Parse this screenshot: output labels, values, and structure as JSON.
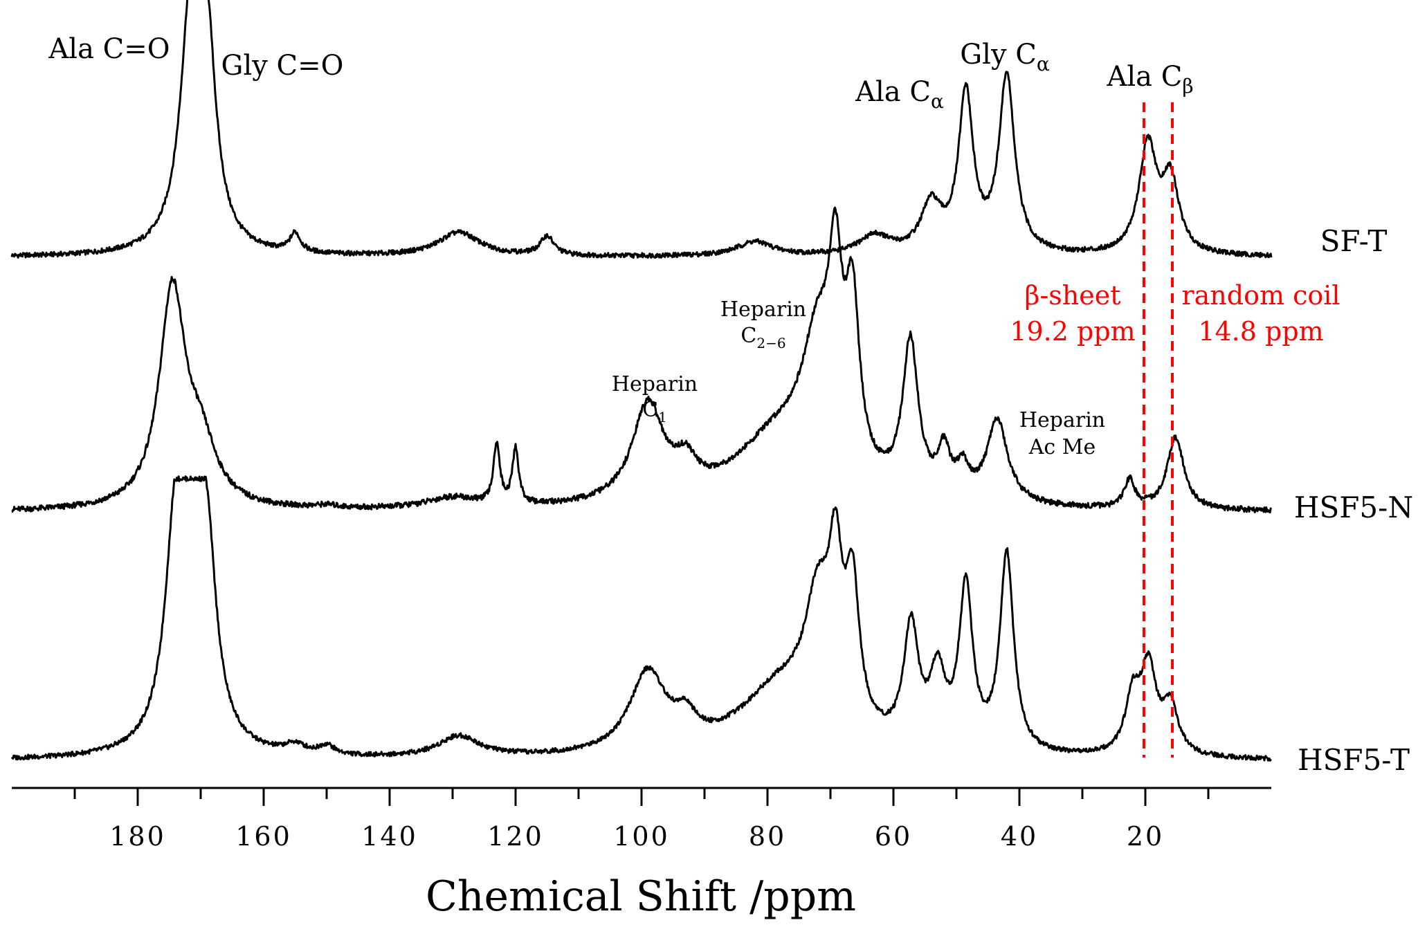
{
  "chart_data": {
    "type": "line",
    "xlabel": "Chemical Shift /ppm",
    "ylabel": "",
    "xlim": [
      200,
      0
    ],
    "x_reversed": true,
    "x_ticks": [
      180,
      160,
      140,
      120,
      100,
      80,
      60,
      40,
      20
    ],
    "x_minor_tick_step": 10,
    "series": [
      {
        "name": "SF-T",
        "peaks": [
          {
            "x": 184,
            "y": 0.0,
            "w": 2
          },
          {
            "x": 171.5,
            "y": 1.0,
            "w": 2.0
          },
          {
            "x": 169.0,
            "y": 0.76,
            "w": 1.7
          },
          {
            "x": 155,
            "y": 0.08,
            "w": 1.0
          },
          {
            "x": 129,
            "y": 0.1,
            "w": 4.0
          },
          {
            "x": 115,
            "y": 0.08,
            "w": 1.3
          },
          {
            "x": 82,
            "y": 0.06,
            "w": 3.5
          },
          {
            "x": 63,
            "y": 0.08,
            "w": 3.0
          },
          {
            "x": 54,
            "y": 0.2,
            "w": 2.0
          },
          {
            "x": 48.5,
            "y": 0.66,
            "w": 1.4
          },
          {
            "x": 42.0,
            "y": 0.74,
            "w": 1.5
          },
          {
            "x": 19.6,
            "y": 0.45,
            "w": 1.7
          },
          {
            "x": 16.0,
            "y": 0.3,
            "w": 1.6
          }
        ]
      },
      {
        "name": "HSF5-N",
        "peaks": [
          {
            "x": 174.5,
            "y": 0.78,
            "w": 2.5
          },
          {
            "x": 170,
            "y": 0.2,
            "w": 3.0
          },
          {
            "x": 150,
            "y": 0.01,
            "w": 2.0
          },
          {
            "x": 130,
            "y": 0.04,
            "w": 5.0
          },
          {
            "x": 123,
            "y": 0.22,
            "w": 0.6
          },
          {
            "x": 120,
            "y": 0.2,
            "w": 0.6
          },
          {
            "x": 99,
            "y": 0.35,
            "w": 3.0
          },
          {
            "x": 93,
            "y": 0.1,
            "w": 2.0
          },
          {
            "x": 78,
            "y": 0.25,
            "w": 9.0
          },
          {
            "x": 72,
            "y": 0.45,
            "w": 3.0
          },
          {
            "x": 69.2,
            "y": 0.6,
            "w": 1.3
          },
          {
            "x": 66.5,
            "y": 0.58,
            "w": 1.3
          },
          {
            "x": 57.3,
            "y": 0.55,
            "w": 1.5
          },
          {
            "x": 52,
            "y": 0.16,
            "w": 1.2
          },
          {
            "x": 49,
            "y": 0.1,
            "w": 1.2
          },
          {
            "x": 43.5,
            "y": 0.3,
            "w": 2.0
          },
          {
            "x": 22.5,
            "y": 0.1,
            "w": 1.0
          },
          {
            "x": 15.2,
            "y": 0.26,
            "w": 1.6
          }
        ]
      },
      {
        "name": "HSF5-T",
        "peaks": [
          {
            "x": 174,
            "y": 0.8,
            "w": 2.0
          },
          {
            "x": 171.5,
            "y": 0.9,
            "w": 2.0
          },
          {
            "x": 169,
            "y": 0.7,
            "w": 1.8
          },
          {
            "x": 155,
            "y": 0.04,
            "w": 2.0
          },
          {
            "x": 150,
            "y": 0.04,
            "w": 1.5
          },
          {
            "x": 129,
            "y": 0.09,
            "w": 4.0
          },
          {
            "x": 99,
            "y": 0.34,
            "w": 3.5
          },
          {
            "x": 93,
            "y": 0.1,
            "w": 2.0
          },
          {
            "x": 78,
            "y": 0.28,
            "w": 8.0
          },
          {
            "x": 72,
            "y": 0.5,
            "w": 2.5
          },
          {
            "x": 69.2,
            "y": 0.6,
            "w": 1.3
          },
          {
            "x": 66.5,
            "y": 0.58,
            "w": 1.3
          },
          {
            "x": 57.2,
            "y": 0.5,
            "w": 1.4
          },
          {
            "x": 53,
            "y": 0.3,
            "w": 1.5
          },
          {
            "x": 48.5,
            "y": 0.68,
            "w": 1.3
          },
          {
            "x": 42.0,
            "y": 0.84,
            "w": 1.3
          },
          {
            "x": 22,
            "y": 0.23,
            "w": 1.4
          },
          {
            "x": 19.5,
            "y": 0.36,
            "w": 1.5
          },
          {
            "x": 16,
            "y": 0.2,
            "w": 1.5
          }
        ]
      }
    ],
    "annotations": [
      {
        "text": "Ala C=O",
        "x": 184,
        "series": "SF-T",
        "y": 1.05
      },
      {
        "text": "Gly C=O",
        "x": 158,
        "series": "SF-T",
        "y": 0.87
      },
      {
        "text": "Ala C",
        "sub": "α",
        "x": 55,
        "series": "SF-T",
        "y": 0.7
      },
      {
        "text": "Gly C",
        "sub": "α",
        "x": 44,
        "series": "SF-T",
        "y": 0.87
      },
      {
        "text": "Ala C",
        "sub": "β",
        "x": 18,
        "series": "SF-T",
        "y": 0.8
      },
      {
        "text": "Heparin",
        "line2": "C",
        "sub2": "2−6",
        "x": 83,
        "series": "HSF5-N",
        "y": 0.63
      },
      {
        "text": "Heparin",
        "line2": "C",
        "sub2": "1",
        "x": 98,
        "series": "HSF5-N",
        "y": 0.4
      },
      {
        "text": "Heparin",
        "line2": "Ac Me",
        "x": 35,
        "series": "HSF5-N",
        "y": 0.3
      }
    ],
    "reference_lines": [
      {
        "x": 19.2,
        "label": "β-sheet",
        "value_label": "19.2 ppm",
        "color": "#ff0000"
      },
      {
        "x": 14.8,
        "label": "random coil",
        "value_label": "14.8 ppm",
        "color": "#ff0000"
      }
    ],
    "legend": "series labels at right end of each trace",
    "grid": false
  }
}
